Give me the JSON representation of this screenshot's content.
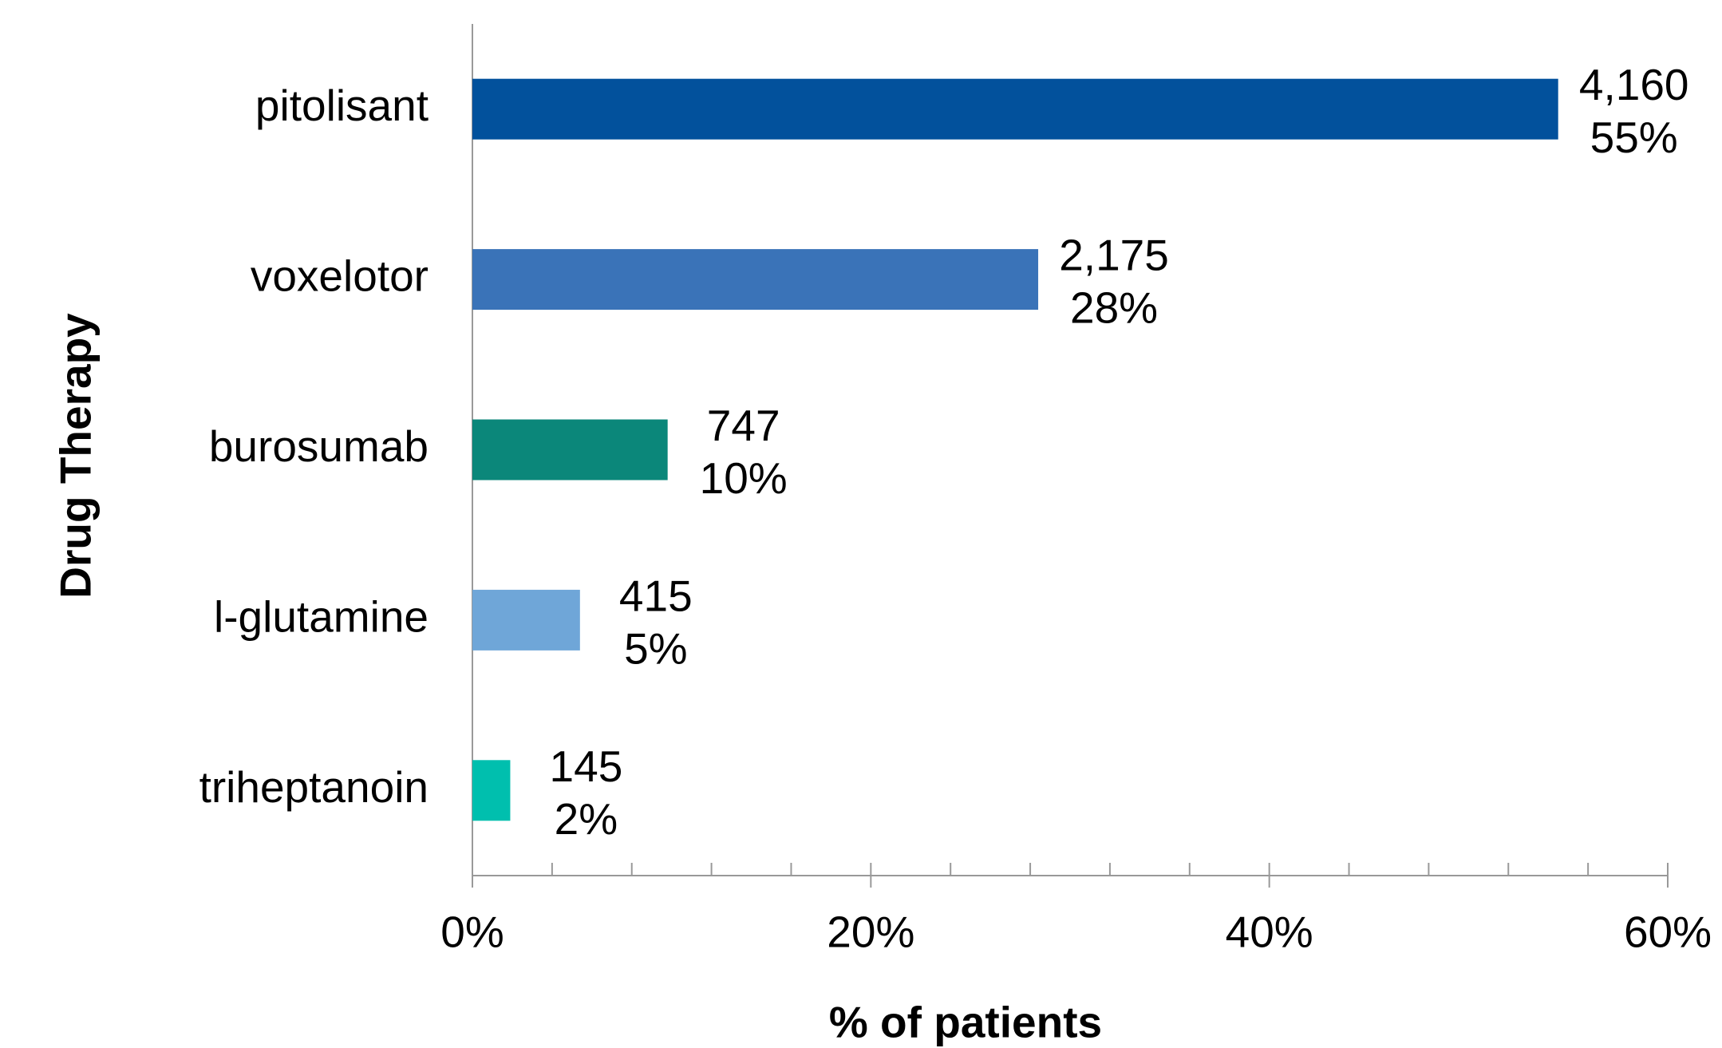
{
  "chart_data": {
    "type": "barh",
    "categories": [
      "pitolisant",
      "voxelotor",
      "burosumab",
      "l-glutamine",
      "triheptanoin"
    ],
    "values": [
      54.5,
      28.4,
      9.8,
      5.4,
      1.9
    ],
    "value_labels": [
      "55%",
      "28%",
      "10%",
      "5%",
      "2%"
    ],
    "count_labels": [
      "4,160",
      "2,175",
      "747",
      "415",
      "145"
    ],
    "colors": [
      "#02519c",
      "#3a73b8",
      "#0b877a",
      "#6fa6d8",
      "#00bfae"
    ],
    "xlabel": "% of patients",
    "ylabel": "Drug Therapy",
    "xlim": [
      0,
      60
    ],
    "xticks": [
      {
        "value": 0,
        "label": "0%"
      },
      {
        "value": 20,
        "label": "20%"
      },
      {
        "value": 40,
        "label": "40%"
      },
      {
        "value": 60,
        "label": "60%"
      }
    ],
    "xminorticks": [
      4,
      8,
      12,
      16,
      24,
      28,
      32,
      36,
      44,
      48,
      52,
      56
    ]
  }
}
